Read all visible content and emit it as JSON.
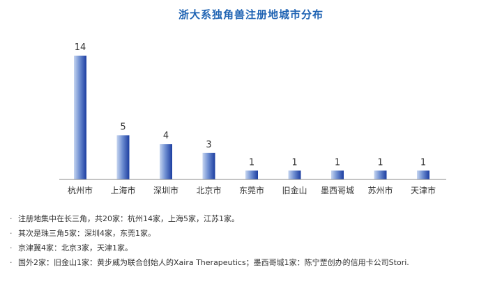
{
  "chart_data": {
    "type": "bar",
    "title": "浙大系独角兽注册地城市分布",
    "categories": [
      "杭州市",
      "上海市",
      "深圳市",
      "北京市",
      "东莞市",
      "旧金山",
      "墨西哥城",
      "苏州市",
      "天津市"
    ],
    "values": [
      14,
      5,
      4,
      3,
      1,
      1,
      1,
      1,
      1
    ],
    "ylim": [
      0,
      14
    ],
    "grid": false,
    "xlabel": "",
    "ylabel": ""
  },
  "colors": {
    "title": "#1f63b3",
    "bar_light": "#c6d5f0",
    "bar_mid": "#6f8fd2",
    "bar_dark": "#1c3da0",
    "axis": "#8a8a8a"
  },
  "notes": [
    "注册地集中在长三角，共20家：杭州14家，上海5家，江苏1家。",
    "其次是珠三角5家：深圳4家，东莞1家。",
    "京津冀4家：北京3家，天津1家。",
    "国外2家：旧金山1家：黄步威为联合创始人的Xaira Therapeutics；墨西哥城1家：陈宁罡创办的信用卡公司Stori."
  ],
  "bullet": "·"
}
